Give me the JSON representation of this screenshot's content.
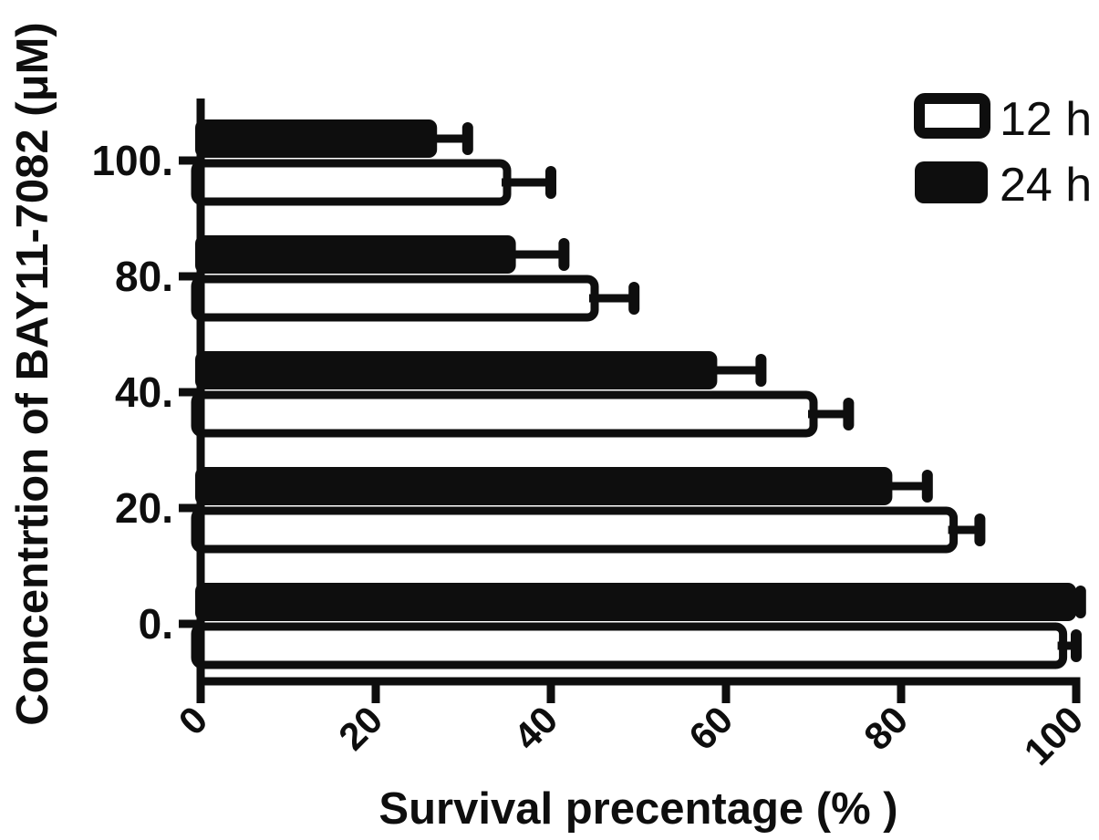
{
  "figure": {
    "background": "#ffffff",
    "ink_color": "#0e0e0e"
  },
  "chart_data": {
    "type": "bar",
    "orientation": "horizontal",
    "title": "",
    "xlabel": "Survival precentage (% )",
    "ylabel": "Concentrtion of BAY11-7082 (μM)",
    "categories": [
      "100.",
      "80.",
      "40.",
      "20.",
      "0."
    ],
    "category_values": [
      100,
      80,
      40,
      20,
      0
    ],
    "x_tick_values": [
      0,
      20,
      40,
      60,
      80,
      100
    ],
    "x_tick_labels": [
      "0",
      "20",
      "40",
      "60",
      "80",
      "100"
    ],
    "xlim": [
      0,
      100
    ],
    "grid": false,
    "legend_position": "top-right",
    "error_bars": true,
    "series": [
      {
        "name": "12 h",
        "swatch": "open",
        "fill": "#ffffff",
        "stroke": "#0e0e0e",
        "values": [
          35,
          45,
          70,
          86,
          98.5
        ],
        "errors": [
          5,
          4.5,
          4,
          3,
          1.5
        ]
      },
      {
        "name": "24 h",
        "swatch": "filled",
        "fill": "#0e0e0e",
        "stroke": "#0e0e0e",
        "values": [
          27,
          36,
          59,
          79,
          100
        ],
        "errors": [
          3.5,
          5.5,
          5,
          4,
          0.5
        ]
      }
    ]
  }
}
